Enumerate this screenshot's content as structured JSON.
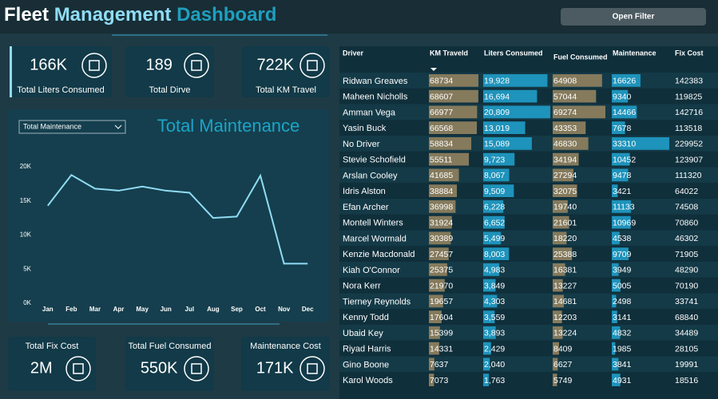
{
  "header": {
    "title_parts": [
      "Fleet",
      "Management",
      "Dashboard"
    ],
    "button": "Open Filter"
  },
  "kpis": [
    {
      "value": "166K",
      "label": "Total Liters Consumed"
    },
    {
      "value": "189",
      "label": "Total Dirve"
    },
    {
      "value": "722K",
      "label": "Total KM Travel"
    },
    {
      "value": "2M",
      "label": "Total Fix Cost"
    },
    {
      "value": "550K",
      "label": "Total Fuel Consumed"
    },
    {
      "value": "171K",
      "label": "Maintenance Cost"
    }
  ],
  "chart_data": {
    "type": "line",
    "title": "Total Maintenance",
    "dropdown": "Total Maintenance",
    "categories": [
      "Jan",
      "Feb",
      "Mar",
      "Apr",
      "May",
      "Jun",
      "Jul",
      "Aug",
      "Sep",
      "Oct",
      "Nov",
      "Dec"
    ],
    "values": [
      14300,
      18800,
      16800,
      16500,
      17100,
      16500,
      16200,
      12500,
      12700,
      18700,
      5800,
      5800
    ],
    "color": "#8fdcf4",
    "ylim": [
      0,
      20000
    ],
    "yticks": [
      {
        "value": 0,
        "label": "0K"
      },
      {
        "value": 5000,
        "label": "5K"
      },
      {
        "value": 10000,
        "label": "10K"
      },
      {
        "value": 15000,
        "label": "15K"
      },
      {
        "value": 20000,
        "label": "20K"
      }
    ],
    "grid": false
  },
  "table": {
    "columns": [
      "Driver",
      "KM Traveld",
      "Liters Consumed",
      "Fuel Consumed",
      "Maintenance",
      "Fix Cost"
    ],
    "bar_colors": [
      null,
      "#857a5c",
      "#1e93bb",
      "#857a5c",
      "#1e93bb",
      null
    ],
    "rows": [
      [
        "Ridwan Greaves",
        "68734",
        "19,928",
        "64908",
        "16626",
        "142383"
      ],
      [
        "Maheen Nicholls",
        "68607",
        "16,694",
        "57044",
        "9340",
        "119825"
      ],
      [
        "Amman Vega",
        "66977",
        "20,809",
        "69274",
        "14466",
        "142716"
      ],
      [
        "Yasin Buck",
        "66568",
        "13,019",
        "43353",
        "7678",
        "113518"
      ],
      [
        "No Driver",
        "58834",
        "15,089",
        "46830",
        "33310",
        "229952"
      ],
      [
        "Stevie Schofield",
        "55511",
        "9,723",
        "34194",
        "10452",
        "123907"
      ],
      [
        "Arslan Cooley",
        "41685",
        "8,067",
        "27294",
        "9478",
        "111320"
      ],
      [
        "Idris Alston",
        "38884",
        "9,509",
        "32075",
        "3421",
        "64022"
      ],
      [
        "Efan Archer",
        "36998",
        "6,228",
        "19740",
        "11133",
        "74508"
      ],
      [
        "Montell Winters",
        "31924",
        "6,652",
        "21601",
        "10969",
        "70860"
      ],
      [
        "Marcel Wormald",
        "30389",
        "5,499",
        "18220",
        "4538",
        "46302"
      ],
      [
        "Kenzie Macdonald",
        "27457",
        "8,003",
        "25388",
        "9709",
        "71905"
      ],
      [
        "Kiah O'Connor",
        "25375",
        "4,983",
        "16381",
        "3949",
        "48290"
      ],
      [
        "Nora Kerr",
        "21970",
        "3,849",
        "13227",
        "5005",
        "70190"
      ],
      [
        "Tierney Reynolds",
        "19657",
        "4,303",
        "14681",
        "2498",
        "33741"
      ],
      [
        "Kenny Todd",
        "17604",
        "3,559",
        "12203",
        "3141",
        "68840"
      ],
      [
        "Ubaid Key",
        "15399",
        "3,893",
        "13224",
        "4832",
        "34489"
      ],
      [
        "Riyad Harris",
        "14331",
        "2,429",
        "8409",
        "1985",
        "28105"
      ],
      [
        "Gino Boone",
        "7637",
        "2,040",
        "6627",
        "3841",
        "19991"
      ],
      [
        "Karol Woods",
        "7073",
        "1,763",
        "5749",
        "4931",
        "18516"
      ]
    ]
  }
}
